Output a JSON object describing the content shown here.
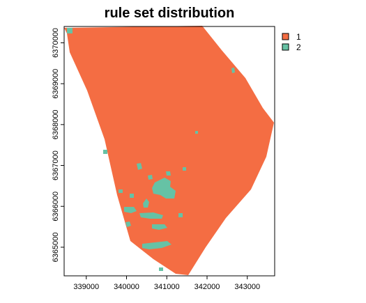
{
  "title": "rule set distribution",
  "x_axis": {
    "ticks": [
      339000,
      340000,
      341000,
      342000,
      343000
    ],
    "range": [
      338450,
      343680
    ]
  },
  "y_axis": {
    "ticks": [
      6365000,
      6366000,
      6367000,
      6368000,
      6369000,
      6370000
    ],
    "range": [
      6364300,
      6370400
    ]
  },
  "legend": {
    "position": "top-right",
    "items": [
      {
        "label": "1",
        "color": "#F46D43"
      },
      {
        "label": "2",
        "color": "#66C2A5"
      }
    ]
  },
  "colors": {
    "class_1": "#F46D43",
    "class_2": "#66C2A5",
    "frame": "#000000"
  }
}
